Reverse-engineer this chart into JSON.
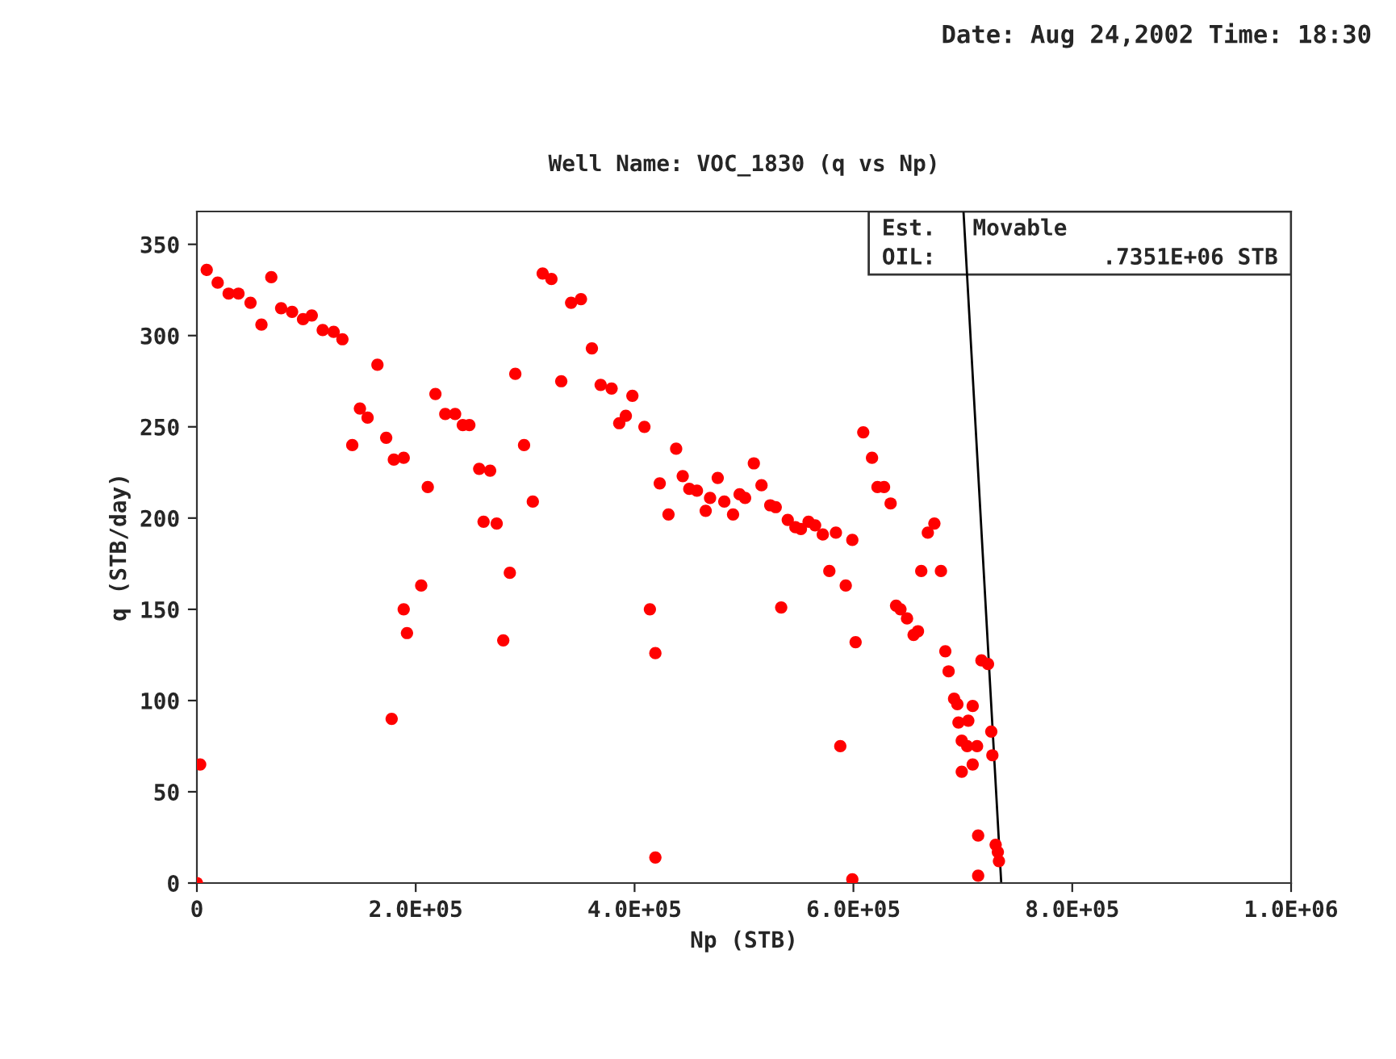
{
  "chart_data": {
    "type": "scatter",
    "title": "Well Name: VOC_1830 (q vs Np)",
    "xlabel": "Np (STB)",
    "ylabel": "q (STB/day)",
    "annotations": [
      "Date: Aug 24,2002 Time: 18:30",
      "Est.",
      "Movable",
      "OIL:",
      ".7351E+06 STB"
    ],
    "xlim": [
      0,
      1000000
    ],
    "ylim": [
      0,
      368
    ],
    "xticks": [
      0,
      {
        "value": 200000,
        "label": "2.0E+05"
      },
      {
        "value": 400000,
        "label": "4.0E+05"
      },
      {
        "value": 600000,
        "label": "6.0E+05"
      },
      {
        "value": 800000,
        "label": "8.0E+05"
      },
      {
        "value": 1000000,
        "label": "1.0E+06"
      }
    ],
    "yticks": [
      0,
      50,
      100,
      150,
      200,
      250,
      300,
      350
    ],
    "grid": false,
    "legend": false,
    "series": [
      {
        "marker": "circle",
        "color": "#ff0000",
        "x": [
          0,
          3000,
          9000,
          19000,
          29000,
          38000,
          49000,
          59000,
          68000,
          77000,
          87000,
          97000,
          105000,
          115000,
          125000,
          133000,
          142000,
          149000,
          156000,
          165000,
          173000,
          180000,
          189000,
          178000,
          189000,
          192000,
          205000,
          211000,
          218000,
          227000,
          236000,
          243000,
          249000,
          258000,
          262000,
          268000,
          274000,
          280000,
          286000,
          291000,
          299000,
          307000,
          316000,
          324000,
          333000,
          342000,
          351000,
          361000,
          369000,
          379000,
          386000,
          392000,
          398000,
          409000,
          414000,
          419000,
          423000,
          419000,
          431000,
          438000,
          444000,
          450000,
          457000,
          465000,
          469000,
          476000,
          482000,
          490000,
          496000,
          501000,
          509000,
          516000,
          524000,
          529000,
          534000,
          540000,
          547000,
          552000,
          559000,
          565000,
          572000,
          578000,
          584000,
          588000,
          593000,
          599000,
          602000,
          599000,
          609000,
          617000,
          622000,
          628000,
          634000,
          639000,
          643000,
          649000,
          655000,
          659000,
          662000,
          668000,
          674000,
          680000,
          684000,
          687000,
          692000,
          695000,
          696000,
          699000,
          704000,
          713000,
          699000,
          709000,
          709000,
          717000,
          723000,
          726000,
          727000,
          714000,
          714000,
          730000,
          732000,
          733000,
          705000
        ],
        "values": [
          0,
          65,
          336,
          329,
          323,
          323,
          318,
          306,
          332,
          315,
          313,
          309,
          311,
          303,
          302,
          298,
          240,
          260,
          255,
          284,
          244,
          232,
          233,
          90,
          150,
          137,
          163,
          217,
          268,
          257,
          257,
          251,
          251,
          227,
          198,
          226,
          197,
          133,
          170,
          279,
          240,
          209,
          334,
          331,
          275,
          318,
          320,
          293,
          273,
          271,
          252,
          256,
          267,
          250,
          150,
          126,
          219,
          14,
          202,
          238,
          223,
          216,
          215,
          204,
          211,
          222,
          209,
          202,
          213,
          211,
          230,
          218,
          207,
          206,
          151,
          199,
          195,
          194,
          198,
          196,
          191,
          171,
          192,
          75,
          163,
          188,
          132,
          2,
          247,
          233,
          217,
          217,
          208,
          152,
          150,
          145,
          136,
          138,
          171,
          192,
          197,
          171,
          127,
          116,
          101,
          98,
          88,
          78,
          75,
          75,
          61,
          65,
          97,
          122,
          120,
          83,
          70,
          26,
          4,
          21,
          17,
          12,
          89
        ]
      },
      {
        "type": "line",
        "color": "#000000",
        "x": [
          700600,
          735100
        ],
        "values": [
          368,
          0
        ]
      }
    ]
  }
}
